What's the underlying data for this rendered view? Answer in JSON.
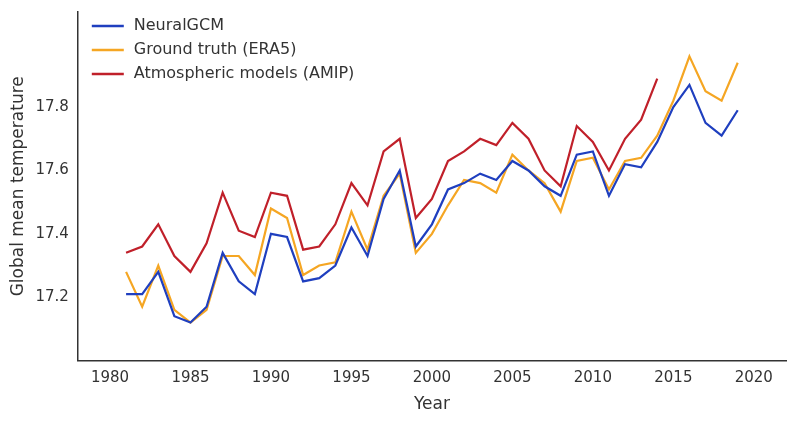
{
  "chart_data": {
    "type": "line",
    "x_label": "Year",
    "y_label": "Global mean temperature",
    "x": [
      1981,
      1982,
      1983,
      1984,
      1985,
      1986,
      1987,
      1988,
      1989,
      1990,
      1991,
      1992,
      1993,
      1994,
      1995,
      1996,
      1997,
      1998,
      1999,
      2000,
      2001,
      2002,
      2003,
      2004,
      2005,
      2006,
      2007,
      2008,
      2009,
      2010,
      2011,
      2012,
      2013,
      2014,
      2015,
      2016,
      2017,
      2018,
      2019
    ],
    "series": [
      {
        "name": "NeuralGCM",
        "color": "#1f3fbf",
        "values": [
          17.21,
          17.21,
          17.28,
          17.14,
          17.12,
          17.17,
          17.34,
          17.25,
          17.21,
          17.4,
          17.39,
          17.25,
          17.26,
          17.3,
          17.42,
          17.33,
          17.51,
          17.6,
          17.36,
          17.43,
          17.54,
          17.56,
          17.59,
          17.57,
          17.63,
          17.6,
          17.55,
          17.52,
          17.65,
          17.66,
          17.52,
          17.62,
          17.61,
          17.69,
          17.8,
          17.87,
          17.75,
          17.71,
          17.79
        ]
      },
      {
        "name": "Ground truth (ERA5)",
        "color": "#f5a623",
        "values": [
          17.28,
          17.17,
          17.3,
          17.16,
          17.12,
          17.16,
          17.33,
          17.33,
          17.27,
          17.48,
          17.45,
          17.27,
          17.3,
          17.31,
          17.47,
          17.35,
          17.52,
          17.59,
          17.34,
          17.4,
          17.49,
          17.57,
          17.56,
          17.53,
          17.65,
          17.6,
          17.56,
          17.47,
          17.63,
          17.64,
          17.54,
          17.63,
          17.64,
          17.71,
          17.82,
          17.96,
          17.85,
          17.82,
          17.94
        ]
      },
      {
        "name": "Atmospheric models (AMIP)",
        "color": "#c0202a",
        "values": [
          17.34,
          17.36,
          17.43,
          17.33,
          17.28,
          17.37,
          17.53,
          17.41,
          17.39,
          17.53,
          17.52,
          17.35,
          17.36,
          17.43,
          17.56,
          17.49,
          17.66,
          17.7,
          17.45,
          17.51,
          17.63,
          17.66,
          17.7,
          17.68,
          17.75,
          17.7,
          17.6,
          17.55,
          17.74,
          17.69,
          17.6,
          17.7,
          17.76,
          17.89,
          null,
          null,
          null,
          null,
          null
        ]
      }
    ],
    "xlim": [
      1978,
      2022
    ],
    "xticks": [
      1980,
      1985,
      1990,
      1995,
      2000,
      2005,
      2010,
      2015,
      2020
    ],
    "ylim": [
      17.0,
      18.1
    ],
    "yticks": [
      17.2,
      17.4,
      17.6,
      17.8
    ],
    "grid": false,
    "legend": "upper left"
  }
}
